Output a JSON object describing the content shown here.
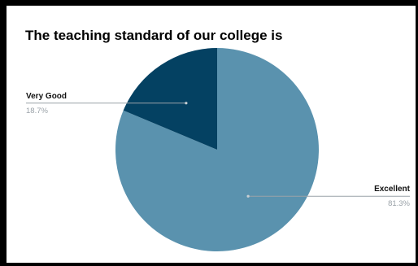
{
  "chart_data": {
    "type": "pie",
    "title": "The teaching standard of our college is",
    "slices": [
      {
        "label": "Excellent",
        "value": 81.3,
        "percent_label": "81.3%",
        "color": "#5a92ae"
      },
      {
        "label": "Very Good",
        "value": 18.7,
        "percent_label": "18.7%",
        "color": "#044162"
      }
    ]
  }
}
